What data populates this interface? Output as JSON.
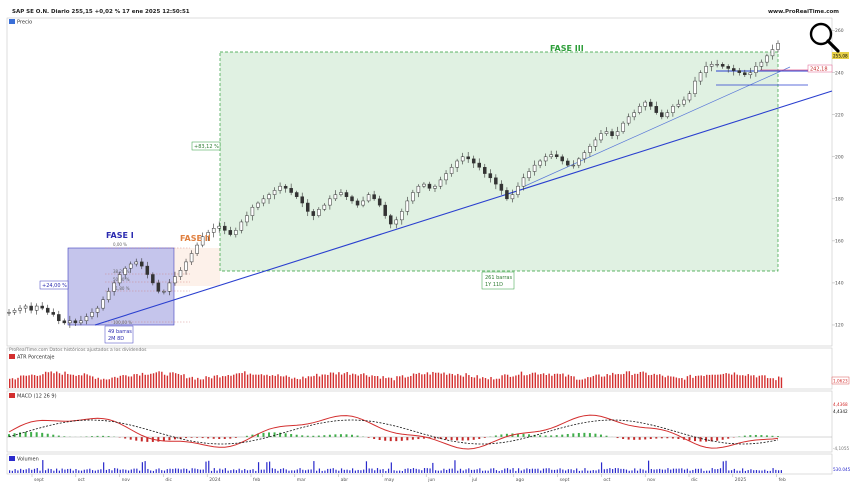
{
  "header": {
    "title": "SAP SE O.N. Diario 255,15 +0,02 % 17 ene 2025 12:50:51",
    "brand": "www.ProRealTime.com"
  },
  "panels": {
    "price": {
      "label": "Precio",
      "footer": "ProRealTime.com Datos históricos ajustados a los dividendos"
    },
    "atr": {
      "label": "ATR Porcentaje",
      "value": "1,0623"
    },
    "macd": {
      "label": "MACD (12 26 9)",
      "value1": "4,4368",
      "value2": "4,4342",
      "low": "-4,1055"
    },
    "volume": {
      "label": "Volumen",
      "value": "530.045"
    }
  },
  "annotations": {
    "fase1": "FASE I",
    "fase2": "FASE II",
    "fase3": "FASE III",
    "pct1": "+24,00 %",
    "pct3": "+83,12 %",
    "bars1_line1": "49 barras",
    "bars1_line2": "2M 8D",
    "bars3_line1": "261 barras",
    "bars3_line2": "1Y 11D",
    "fib": [
      "0,00 %",
      "38,20 %",
      "50,00 %",
      "61,80 %",
      "100,00 %"
    ],
    "level_242": "242,18",
    "level_255": "255,08"
  },
  "icons": {
    "zoom": "magnifier-icon"
  },
  "colors": {
    "bull": "#2e7d32",
    "bear": "#c62828",
    "candle": "#333333",
    "fase1": "#3f3fbf",
    "fase2": "#e08040",
    "fase3": "#2e9e3a",
    "trend": "#2a3fcf",
    "atr": "#d32f2f",
    "macd": "#d32f2f",
    "signal": "#111111",
    "volume": "#2a2acc"
  },
  "chart_data": {
    "type": "line",
    "x_ticks": [
      "sept",
      "oct",
      "nov",
      "dic",
      "2024",
      "feb",
      "mar",
      "abr",
      "may",
      "jun",
      "jul",
      "ago",
      "sept",
      "oct",
      "nov",
      "dic",
      "2025",
      "feb"
    ],
    "y_ticks": [
      120,
      140,
      160,
      180,
      200,
      220,
      240,
      260
    ],
    "ylim": [
      110,
      266
    ],
    "series": [
      {
        "values": [
          126,
          127,
          128,
          129,
          127,
          129,
          128,
          126,
          125,
          122,
          121,
          122,
          121,
          122,
          124,
          126,
          128,
          132,
          136,
          140,
          144,
          147,
          149,
          150,
          148,
          144,
          140,
          136,
          136,
          140,
          143,
          146,
          150,
          154,
          158,
          162,
          164,
          166,
          167,
          165,
          163,
          165,
          169,
          172,
          176,
          178,
          180,
          182,
          184,
          186,
          185,
          183,
          181,
          178,
          174,
          172,
          175,
          177,
          180,
          182,
          183,
          181,
          179,
          177,
          179,
          182,
          180,
          177,
          172,
          168,
          170,
          174,
          179,
          183,
          186,
          187,
          185,
          186,
          189,
          192,
          195,
          198,
          200,
          199,
          197,
          195,
          192,
          190,
          187,
          184,
          180,
          182,
          186,
          190,
          193,
          196,
          198,
          200,
          201,
          200,
          198,
          196,
          196,
          199,
          202,
          205,
          208,
          211,
          212,
          210,
          212,
          216,
          219,
          221,
          224,
          226,
          224,
          221,
          219,
          221,
          224,
          225,
          227,
          230,
          236,
          240,
          243,
          244,
          244,
          243,
          242,
          241,
          240,
          239,
          240,
          243,
          245,
          248,
          251,
          254
        ]
      }
    ]
  }
}
